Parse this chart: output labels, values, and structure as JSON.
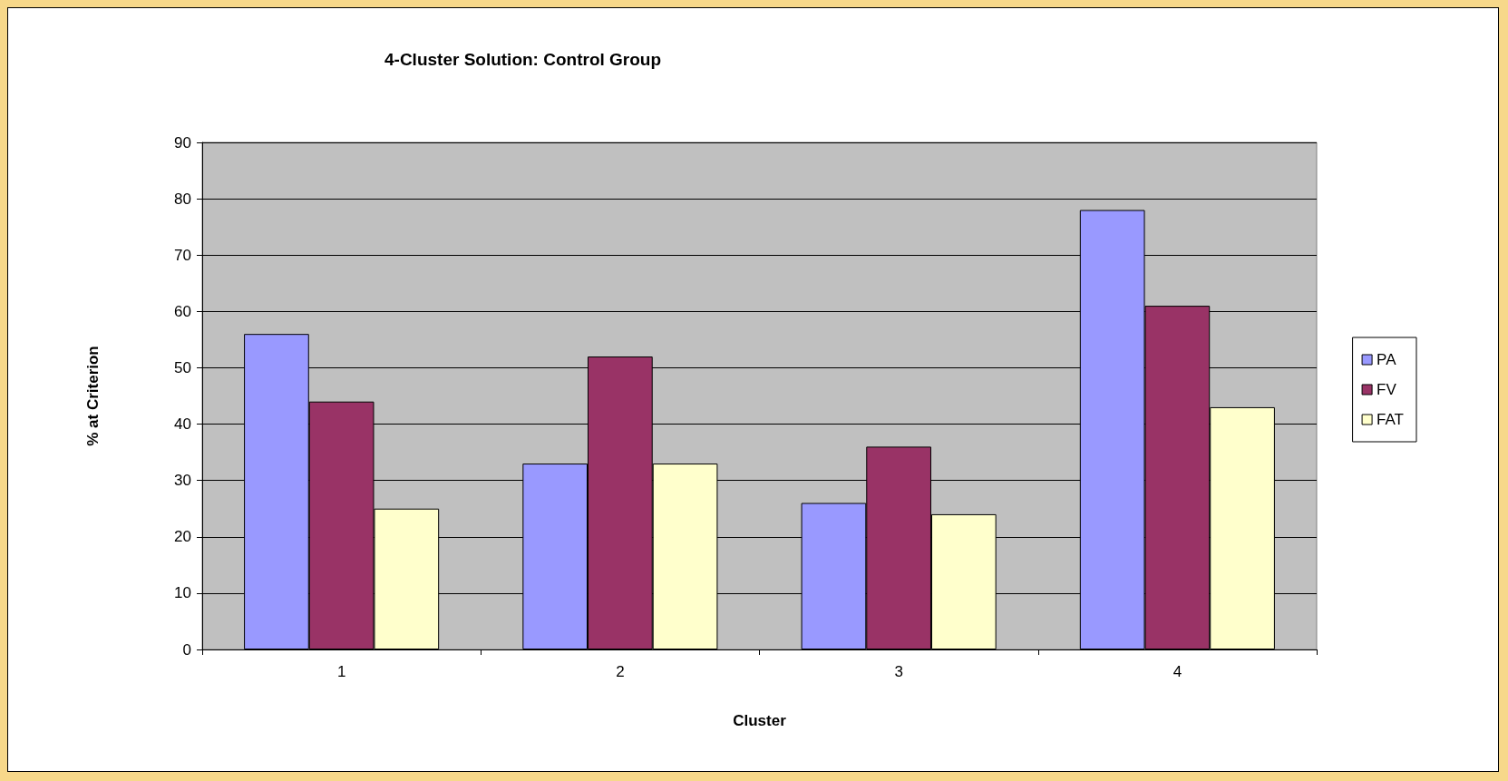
{
  "chart_data": {
    "type": "bar",
    "title": "4-Cluster Solution: Control Group",
    "xlabel": "Cluster",
    "ylabel": "% at Criterion",
    "categories": [
      "1",
      "2",
      "3",
      "4"
    ],
    "series": [
      {
        "name": "PA",
        "color": "#9999ff",
        "values": [
          56,
          33,
          26,
          78
        ]
      },
      {
        "name": "FV",
        "color": "#993366",
        "values": [
          44,
          52,
          36,
          61
        ]
      },
      {
        "name": "FAT",
        "color": "#ffffcc",
        "values": [
          25,
          33,
          24,
          43
        ]
      }
    ],
    "ylim": [
      0,
      90
    ],
    "yticks": [
      0,
      10,
      20,
      30,
      40,
      50,
      60,
      70,
      80,
      90
    ],
    "grid": "y",
    "legend": "right"
  }
}
